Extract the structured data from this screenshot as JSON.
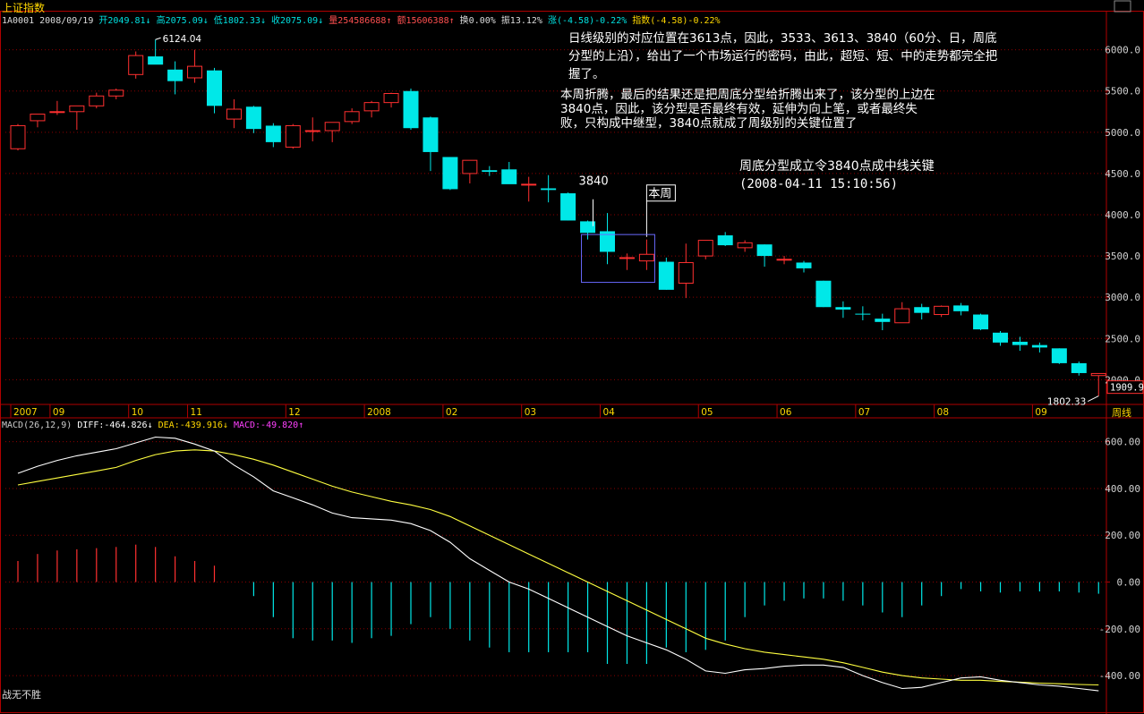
{
  "app": {
    "title": "上证指数",
    "footer": "战无不胜",
    "period_label": "周线",
    "last_price_tag": "1909.9"
  },
  "infobar": {
    "code_date": "1A0001 2008/09/19",
    "open": "开2049.81↓",
    "high": "高2075.09↓",
    "low": "低1802.33↓",
    "close": "收2075.09↓",
    "volume": "量254586688↑",
    "amount": "额15606388↑",
    "turnover": "换0.00%",
    "amplitude": "振13.12%",
    "change": "涨(-4.58)-0.22%",
    "index": "指数(-4.58)-0.22%"
  },
  "annotations": {
    "daily_note": "日线级别的对应位置在3613点，因此，3533、3613、3840（60分、日，周底分型的上沿），给出了一个市场运行的密码，由此，超短、短、中的走势都完全把握了。",
    "weekly_note": "本周折腾，最后的结果还是把周底分型给折腾出来了，该分型的上边在3840点，因此，该分型是否最终有效，延伸为向上笔，或者最终失败，只构成中继型，3840点就成了周级别的关键位置了",
    "headline": "周底分型成立令3840点成中线关键",
    "timestamp": "(2008-04-11 15:10:56)",
    "label_3840": "3840",
    "label_this_week": "本周",
    "high_marker": "6124.04",
    "low_marker": "1802.33"
  },
  "colors": {
    "up": "#ff3030",
    "down": "#00e8e8",
    "diff_line": "#ffffff",
    "dea_line": "#ffff40",
    "grid": "#8b0000",
    "box": "#6a6aff"
  },
  "macd_header": {
    "params": "MACD(26,12,9)",
    "diff": "DIFF:-464.826↓",
    "dea": "DEA:-439.916↓",
    "macd": "MACD:-49.820↑"
  },
  "chart_data": [
    {
      "type": "candlestick",
      "title": "",
      "ylim": [
        1700,
        6300
      ],
      "yticks": [
        "6000.0",
        "5500.0",
        "5000.0",
        "4500.0",
        "4000.0",
        "3500.0",
        "3000.0",
        "2500.0",
        "2000.0"
      ],
      "ytick_values": [
        6000,
        5500,
        5000,
        4500,
        4000,
        3500,
        3000,
        2500,
        2000
      ],
      "xticks": [
        {
          "label": "2007",
          "bar": 0
        },
        {
          "label": "09",
          "bar": 2
        },
        {
          "label": "10",
          "bar": 6
        },
        {
          "label": "11",
          "bar": 9
        },
        {
          "label": "12",
          "bar": 14
        },
        {
          "label": "2008",
          "bar": 18
        },
        {
          "label": "02",
          "bar": 22
        },
        {
          "label": "03",
          "bar": 26
        },
        {
          "label": "04",
          "bar": 30
        },
        {
          "label": "05",
          "bar": 35
        },
        {
          "label": "06",
          "bar": 39
        },
        {
          "label": "07",
          "bar": 43
        },
        {
          "label": "08",
          "bar": 47
        },
        {
          "label": "09",
          "bar": 52
        }
      ],
      "ohlc": [
        [
          4800,
          5100,
          4780,
          5080
        ],
        [
          5140,
          5220,
          5060,
          5220
        ],
        [
          5250,
          5380,
          5210,
          5250
        ],
        [
          5250,
          5320,
          5030,
          5320
        ],
        [
          5320,
          5480,
          5290,
          5440
        ],
        [
          5440,
          5530,
          5400,
          5510
        ],
        [
          5700,
          5980,
          5650,
          5930
        ],
        [
          5920,
          6124,
          5850,
          5820
        ],
        [
          5760,
          5860,
          5460,
          5620
        ],
        [
          5660,
          6000,
          5600,
          5800
        ],
        [
          5750,
          5780,
          5230,
          5320
        ],
        [
          5160,
          5400,
          5050,
          5280
        ],
        [
          5310,
          5320,
          4990,
          5040
        ],
        [
          5080,
          5110,
          4820,
          4880
        ],
        [
          4820,
          5100,
          4800,
          5080
        ],
        [
          5010,
          5180,
          4890,
          5020
        ],
        [
          5020,
          5120,
          4880,
          5120
        ],
        [
          5130,
          5290,
          5100,
          5250
        ],
        [
          5260,
          5380,
          5180,
          5360
        ],
        [
          5360,
          5480,
          5300,
          5470
        ],
        [
          5500,
          5530,
          5030,
          5050
        ],
        [
          5180,
          5190,
          4530,
          4760
        ],
        [
          4700,
          4700,
          4300,
          4310
        ],
        [
          4500,
          4620,
          4380,
          4660
        ],
        [
          4540,
          4590,
          4470,
          4520
        ],
        [
          4550,
          4640,
          4380,
          4370
        ],
        [
          4370,
          4460,
          4160,
          4370
        ],
        [
          4320,
          4480,
          4150,
          4300
        ],
        [
          4260,
          4270,
          3930,
          3930
        ],
        [
          3920,
          3930,
          3700,
          3780
        ],
        [
          3800,
          4020,
          3400,
          3550
        ],
        [
          3480,
          3530,
          3330,
          3480
        ],
        [
          3440,
          3700,
          3330,
          3520
        ],
        [
          3430,
          3480,
          3090,
          3090
        ],
        [
          3170,
          3650,
          2990,
          3420
        ],
        [
          3500,
          3690,
          3460,
          3690
        ],
        [
          3750,
          3790,
          3620,
          3630
        ],
        [
          3600,
          3690,
          3550,
          3660
        ],
        [
          3640,
          3640,
          3370,
          3500
        ],
        [
          3460,
          3500,
          3400,
          3460
        ],
        [
          3420,
          3440,
          3300,
          3350
        ],
        [
          3200,
          3200,
          2880,
          2880
        ],
        [
          2880,
          2950,
          2750,
          2850
        ],
        [
          2800,
          2890,
          2720,
          2790
        ],
        [
          2740,
          2800,
          2600,
          2700
        ],
        [
          2690,
          2940,
          2690,
          2860
        ],
        [
          2880,
          2920,
          2730,
          2810
        ],
        [
          2790,
          2900,
          2760,
          2890
        ],
        [
          2900,
          2930,
          2780,
          2830
        ],
        [
          2790,
          2800,
          2600,
          2610
        ],
        [
          2570,
          2590,
          2410,
          2450
        ],
        [
          2460,
          2520,
          2350,
          2420
        ],
        [
          2420,
          2450,
          2330,
          2390
        ],
        [
          2380,
          2380,
          2190,
          2200
        ],
        [
          2200,
          2220,
          2050,
          2080
        ],
        [
          2050,
          2075,
          1802,
          2075
        ]
      ]
    },
    {
      "type": "line",
      "title": "MACD(26,12,9)",
      "ylim": [
        -480,
        660
      ],
      "yticks": [
        "600.00",
        "400.00",
        "200.00",
        "0.00",
        "-200.00",
        "-400.00"
      ],
      "ytick_values": [
        600,
        400,
        200,
        0,
        -200,
        -400
      ],
      "series": [
        {
          "name": "DIFF",
          "values": [
            465,
            495,
            520,
            540,
            555,
            570,
            595,
            620,
            615,
            590,
            560,
            500,
            450,
            390,
            360,
            330,
            295,
            275,
            270,
            265,
            250,
            220,
            170,
            100,
            50,
            0,
            -30,
            -70,
            -110,
            -150,
            -190,
            -230,
            -260,
            -290,
            -330,
            -380,
            -390,
            -375,
            -370,
            -360,
            -355,
            -355,
            -365,
            -400,
            -430,
            -455,
            -450,
            -430,
            -410,
            -405,
            -420,
            -430,
            -440,
            -445,
            -455,
            -465
          ]
        },
        {
          "name": "DEA",
          "values": [
            415,
            430,
            445,
            460,
            475,
            490,
            520,
            545,
            560,
            565,
            560,
            545,
            525,
            500,
            470,
            440,
            410,
            385,
            365,
            345,
            330,
            310,
            280,
            240,
            200,
            160,
            120,
            80,
            40,
            0,
            -40,
            -80,
            -120,
            -160,
            -200,
            -240,
            -265,
            -285,
            -300,
            -310,
            -320,
            -330,
            -345,
            -365,
            -385,
            -400,
            -410,
            -415,
            -420,
            -420,
            -425,
            -428,
            -432,
            -435,
            -438,
            -440
          ]
        },
        {
          "name": "MACD",
          "values": [
            90,
            120,
            135,
            140,
            145,
            150,
            160,
            150,
            110,
            90,
            70,
            0,
            -60,
            -150,
            -240,
            -250,
            -250,
            -260,
            -240,
            -230,
            -180,
            -150,
            -200,
            -250,
            -280,
            -300,
            -300,
            -300,
            -300,
            -300,
            -350,
            -350,
            -350,
            -280,
            -300,
            -290,
            -250,
            -150,
            -100,
            -80,
            -70,
            -70,
            -80,
            -100,
            -130,
            -150,
            -100,
            -60,
            -30,
            -40,
            -45,
            -40,
            -40,
            -40,
            -45,
            -50
          ]
        }
      ]
    }
  ]
}
